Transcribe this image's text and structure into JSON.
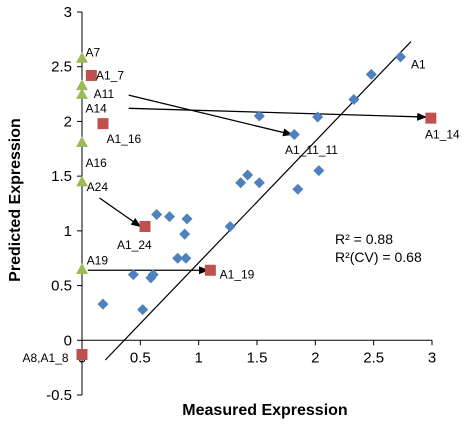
{
  "chart_data": {
    "type": "scatter",
    "title": "",
    "xlabel": "Measured Expression",
    "ylabel": "Predicted Expression",
    "xlim": [
      0,
      3
    ],
    "ylim": [
      -0.5,
      3
    ],
    "xticks": [
      "0",
      "0.5",
      "1",
      "1.5",
      "2",
      "2.5",
      "3"
    ],
    "yticks": [
      "-0.5",
      "0",
      "0.5",
      "1",
      "1.5",
      "2",
      "2.5",
      "3"
    ],
    "grid": false,
    "colors": {
      "diamond": "#4f81bd",
      "square": "#c0504d",
      "triangle": "#9bbb59",
      "line": "#000000"
    },
    "series": [
      {
        "marker": "diamond",
        "points": [
          [
            2.73,
            2.59
          ],
          [
            2.48,
            2.43
          ],
          [
            2.33,
            2.2
          ],
          [
            2.02,
            2.04
          ],
          [
            1.82,
            1.88
          ],
          [
            1.52,
            2.05
          ],
          [
            2.03,
            1.55
          ],
          [
            1.85,
            1.38
          ],
          [
            1.52,
            1.44
          ],
          [
            1.42,
            1.51
          ],
          [
            1.36,
            1.44
          ],
          [
            1.27,
            1.04
          ],
          [
            0.9,
            1.11
          ],
          [
            0.75,
            1.13
          ],
          [
            0.64,
            1.15
          ],
          [
            0.88,
            0.97
          ],
          [
            0.89,
            0.75
          ],
          [
            0.82,
            0.75
          ],
          [
            0.44,
            0.6
          ],
          [
            0.61,
            0.6
          ],
          [
            0.59,
            0.57
          ],
          [
            0.18,
            0.33
          ],
          [
            0.52,
            0.28
          ]
        ]
      },
      {
        "marker": "square",
        "points": [
          [
            0.08,
            2.42
          ],
          [
            0.18,
            1.98
          ],
          [
            2.99,
            2.03
          ],
          [
            0.54,
            1.04
          ],
          [
            1.1,
            0.64
          ],
          [
            0.0,
            -0.13
          ]
        ]
      },
      {
        "marker": "triangle",
        "points": [
          [
            0.0,
            2.58
          ],
          [
            0.0,
            2.33
          ],
          [
            0.0,
            2.25
          ],
          [
            0.0,
            1.81
          ],
          [
            0.0,
            1.45
          ],
          [
            0.0,
            0.65
          ]
        ]
      }
    ],
    "fit_line": [
      [
        0.2,
        -0.18
      ],
      [
        2.82,
        2.73
      ]
    ],
    "arrows": [
      [
        [
          0.4,
          2.24
        ],
        [
          1.8,
          1.88
        ]
      ],
      [
        [
          0.4,
          2.12
        ],
        [
          2.95,
          2.04
        ]
      ],
      [
        [
          0.15,
          1.3
        ],
        [
          0.5,
          1.04
        ]
      ],
      [
        [
          0.05,
          0.64
        ],
        [
          1.08,
          0.64
        ]
      ]
    ],
    "labels": [
      {
        "text": "A7",
        "x": 0.03,
        "y": 2.63
      },
      {
        "text": "A1_7",
        "x": 0.12,
        "y": 2.42
      },
      {
        "text": "A11",
        "x": 0.1,
        "y": 2.25
      },
      {
        "text": "A14",
        "x": 0.03,
        "y": 2.12
      },
      {
        "text": "A1_16",
        "x": 0.21,
        "y": 1.84
      },
      {
        "text": "A16",
        "x": 0.03,
        "y": 1.62
      },
      {
        "text": "A24",
        "x": 0.04,
        "y": 1.4
      },
      {
        "text": "A1",
        "x": 2.82,
        "y": 2.52
      },
      {
        "text": "A1_11_11",
        "x": 1.74,
        "y": 1.74
      },
      {
        "text": "A1_14",
        "x": 2.94,
        "y": 1.88
      },
      {
        "text": "A1_24",
        "x": 0.3,
        "y": 0.87
      },
      {
        "text": "A19",
        "x": 0.04,
        "y": 0.73
      },
      {
        "text": "A1_19",
        "x": 1.18,
        "y": 0.6
      },
      {
        "text": "A8,A1_8",
        "x": -0.51,
        "y": -0.16
      }
    ],
    "stats": [
      "R² = 0.88",
      "R²(CV) = 0.68"
    ]
  }
}
